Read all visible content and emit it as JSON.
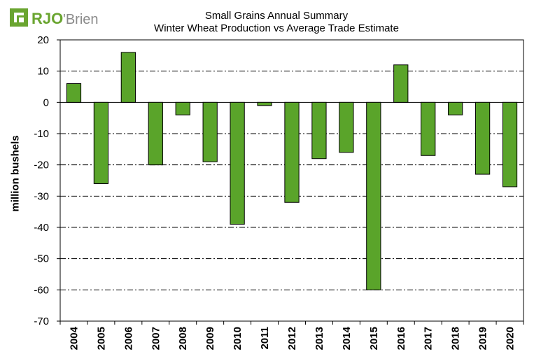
{
  "logo": {
    "brand_a": "RJO",
    "brand_b": "'Brien"
  },
  "colors": {
    "bar_fill": "#5aa42a",
    "bar_stroke": "#000000",
    "grid": "#000000",
    "logo_green": "#6aa530",
    "logo_gray": "#8a8a8a"
  },
  "chart_data": {
    "type": "bar",
    "title": "Small Grains Annual Summary",
    "subtitle": "Winter Wheat Production vs Average Trade Estimate",
    "xlabel": "",
    "ylabel": "million bushels",
    "ylim": [
      -70,
      20
    ],
    "yticks": [
      20,
      10,
      0,
      -10,
      -20,
      -30,
      -40,
      -50,
      -60,
      -70
    ],
    "grid": "horizontal dash-dot",
    "categories": [
      "2004",
      "2005",
      "2006",
      "2007",
      "2008",
      "2009",
      "2010",
      "2011",
      "2012",
      "2013",
      "2014",
      "2015",
      "2016",
      "2017",
      "2018",
      "2019",
      "2020"
    ],
    "values": [
      6,
      -26,
      16,
      -20,
      -4,
      -19,
      -39,
      -1,
      -32,
      -18,
      -16,
      -60,
      12,
      -17,
      -4,
      -23,
      -27
    ]
  }
}
